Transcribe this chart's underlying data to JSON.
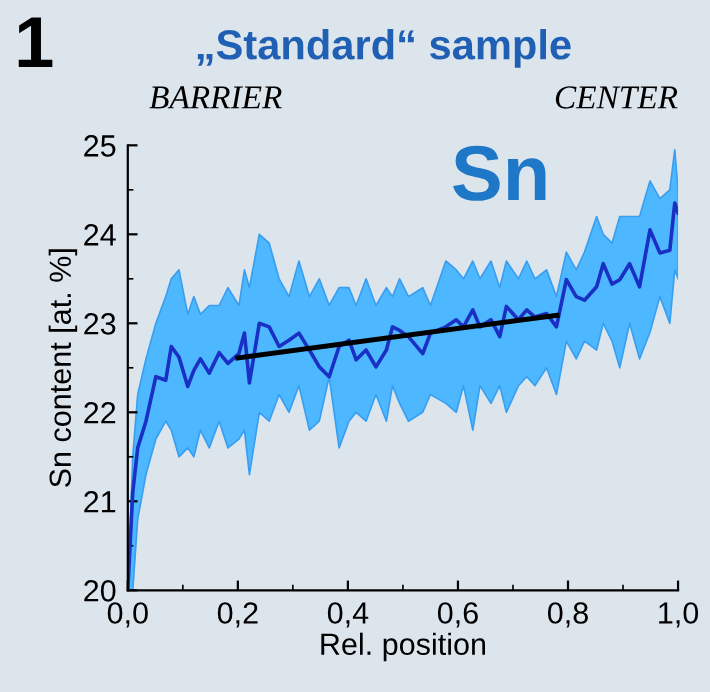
{
  "chart_data": {
    "type": "line",
    "title": "„Standard“ sample",
    "xlabel": "Rel. position",
    "ylabel": "Sn content [at. %]",
    "annotations": [
      "1",
      "BARRIER",
      "CENTER",
      "Sn"
    ],
    "xlim": [
      0,
      1
    ],
    "ylim": [
      20,
      25
    ],
    "xticks": [
      {
        "value": 0,
        "label": "0,0"
      },
      {
        "value": 0.2,
        "label": "0,2"
      },
      {
        "value": 0.4,
        "label": "0,4"
      },
      {
        "value": 0.6,
        "label": "0,6"
      },
      {
        "value": 0.8,
        "label": "0,8"
      },
      {
        "value": 1,
        "label": "1,0"
      }
    ],
    "yticks": [
      20,
      21,
      22,
      23,
      24,
      25
    ],
    "grid": false,
    "legend": false,
    "series": [
      {
        "color": "#1a2fc4",
        "x": [
          0,
          0.009,
          0.018,
          0.033,
          0.051,
          0.069,
          0.079,
          0.093,
          0.109,
          0.12,
          0.132,
          0.148,
          0.166,
          0.182,
          0.202,
          0.212,
          0.221,
          0.239,
          0.257,
          0.275,
          0.293,
          0.311,
          0.33,
          0.348,
          0.366,
          0.384,
          0.402,
          0.415,
          0.433,
          0.451,
          0.47,
          0.481,
          0.494,
          0.51,
          0.536,
          0.55,
          0.578,
          0.597,
          0.61,
          0.627,
          0.64,
          0.66,
          0.676,
          0.688,
          0.71,
          0.725,
          0.74,
          0.761,
          0.779,
          0.797,
          0.815,
          0.83,
          0.852,
          0.864,
          0.88,
          0.894,
          0.912,
          0.93,
          0.949,
          0.967,
          0.985,
          0.994,
          1.0
        ],
        "values": [
          20.0,
          21.1,
          21.6,
          21.9,
          22.4,
          22.36,
          22.74,
          22.62,
          22.29,
          22.47,
          22.6,
          22.44,
          22.67,
          22.55,
          22.66,
          22.89,
          22.33,
          23.0,
          22.96,
          22.74,
          22.81,
          22.89,
          22.7,
          22.51,
          22.4,
          22.74,
          22.81,
          22.59,
          22.7,
          22.51,
          22.7,
          22.96,
          22.92,
          22.85,
          22.66,
          22.89,
          22.96,
          23.04,
          22.96,
          23.15,
          22.96,
          23.04,
          22.85,
          23.19,
          23.04,
          23.15,
          23.07,
          23.11,
          22.96,
          23.49,
          23.3,
          23.26,
          23.41,
          23.67,
          23.44,
          23.49,
          23.67,
          23.41,
          24.05,
          23.79,
          23.82,
          24.35,
          24.24
        ],
        "upper": [
          20.0,
          21.5,
          22.2,
          22.6,
          23.0,
          23.3,
          23.5,
          23.6,
          23.1,
          23.3,
          23.1,
          23.2,
          23.2,
          23.4,
          23.2,
          23.6,
          23.4,
          24.0,
          23.9,
          23.5,
          23.3,
          23.7,
          23.3,
          23.5,
          23.2,
          23.4,
          23.4,
          23.2,
          23.5,
          23.2,
          23.4,
          23.3,
          23.5,
          23.3,
          23.4,
          23.2,
          23.7,
          23.6,
          23.5,
          23.7,
          23.5,
          23.7,
          23.4,
          23.7,
          23.5,
          23.7,
          23.5,
          23.6,
          23.3,
          23.8,
          23.6,
          23.8,
          24.2,
          24.0,
          23.9,
          24.2,
          24.2,
          24.2,
          24.6,
          24.4,
          24.5,
          24.95,
          24.5
        ],
        "lower": [
          20.0,
          20.0,
          20.8,
          21.3,
          21.7,
          21.9,
          21.8,
          21.5,
          21.6,
          21.5,
          21.8,
          21.6,
          21.9,
          21.6,
          21.7,
          21.8,
          21.3,
          22.0,
          21.9,
          22.2,
          22.0,
          22.3,
          21.8,
          21.9,
          22.4,
          21.6,
          21.9,
          22.0,
          21.9,
          22.2,
          21.9,
          22.3,
          22.1,
          21.9,
          22.0,
          22.2,
          22.1,
          22.0,
          22.3,
          21.8,
          22.3,
          22.1,
          22.3,
          22.0,
          22.3,
          22.4,
          22.3,
          22.5,
          22.2,
          22.8,
          22.6,
          22.8,
          22.7,
          23.0,
          22.8,
          22.5,
          23.0,
          22.6,
          22.9,
          23.3,
          23.0,
          23.6,
          23.5
        ]
      },
      {
        "color": "#000000",
        "x": [
          0.2,
          0.78
        ],
        "values": [
          22.61,
          23.09
        ]
      }
    ]
  }
}
